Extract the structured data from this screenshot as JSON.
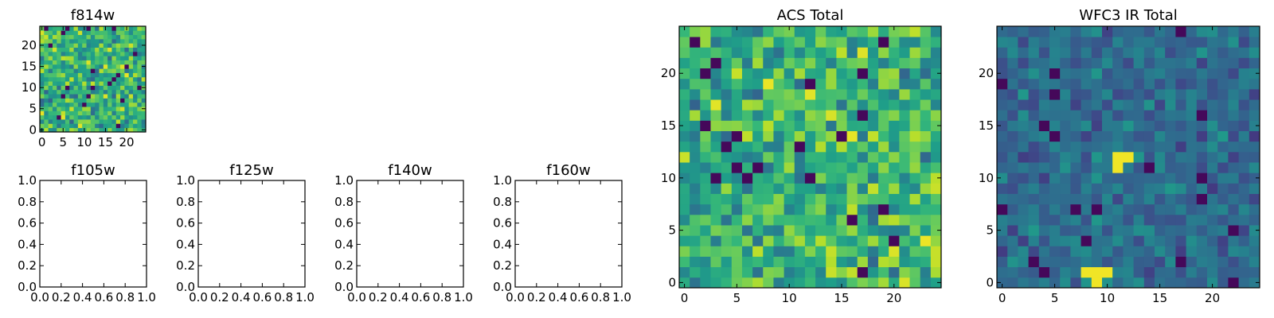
{
  "chart_data": [
    {
      "type": "heatmap",
      "title": "f814w",
      "xlabel": "",
      "ylabel": "",
      "xlim": [
        -0.5,
        24.5
      ],
      "ylim": [
        -0.5,
        24.5
      ],
      "xticks": [
        0,
        5,
        10,
        15,
        20
      ],
      "yticks": [
        0,
        5,
        10,
        15,
        20
      ],
      "grid_size": [
        25,
        25
      ],
      "colormap": "viridis",
      "seed": 814,
      "value_range": [
        0.3,
        1.0
      ]
    },
    {
      "type": "heatmap",
      "title": "f105w",
      "xlabel": "",
      "ylabel": "",
      "xlim": [
        0.0,
        1.0
      ],
      "ylim": [
        0.0,
        1.0
      ],
      "xticks": [
        "0.0",
        "0.2",
        "0.4",
        "0.6",
        "0.8",
        "1.0"
      ],
      "yticks": [
        "0.0",
        "0.2",
        "0.4",
        "0.6",
        "0.8",
        "1.0"
      ],
      "empty": true
    },
    {
      "type": "heatmap",
      "title": "f125w",
      "xlabel": "",
      "ylabel": "",
      "xlim": [
        0.0,
        1.0
      ],
      "ylim": [
        0.0,
        1.0
      ],
      "xticks": [
        "0.0",
        "0.2",
        "0.4",
        "0.6",
        "0.8",
        "1.0"
      ],
      "yticks": [
        "0.0",
        "0.2",
        "0.4",
        "0.6",
        "0.8",
        "1.0"
      ],
      "empty": true
    },
    {
      "type": "heatmap",
      "title": "f140w",
      "xlabel": "",
      "ylabel": "",
      "xlim": [
        0.0,
        1.0
      ],
      "ylim": [
        0.0,
        1.0
      ],
      "xticks": [
        "0.0",
        "0.2",
        "0.4",
        "0.6",
        "0.8",
        "1.0"
      ],
      "yticks": [
        "0.0",
        "0.2",
        "0.4",
        "0.6",
        "0.8",
        "1.0"
      ],
      "empty": true
    },
    {
      "type": "heatmap",
      "title": "f160w",
      "xlabel": "",
      "ylabel": "",
      "xlim": [
        0.0,
        1.0
      ],
      "ylim": [
        0.0,
        1.0
      ],
      "xticks": [
        "0.0",
        "0.2",
        "0.4",
        "0.6",
        "0.8",
        "1.0"
      ],
      "yticks": [
        "0.0",
        "0.2",
        "0.4",
        "0.6",
        "0.8",
        "1.0"
      ],
      "empty": true
    },
    {
      "type": "heatmap",
      "title": "ACS Total",
      "xlabel": "",
      "ylabel": "",
      "xlim": [
        -0.5,
        24.5
      ],
      "ylim": [
        -0.5,
        24.5
      ],
      "xticks": [
        0,
        5,
        10,
        15,
        20
      ],
      "yticks": [
        0,
        5,
        10,
        15,
        20
      ],
      "grid_size": [
        25,
        25
      ],
      "colormap": "viridis",
      "seed": 1200,
      "value_range": [
        0.3,
        1.0
      ]
    },
    {
      "type": "heatmap",
      "title": "WFC3 IR Total",
      "xlabel": "",
      "ylabel": "",
      "xlim": [
        -0.5,
        24.5
      ],
      "ylim": [
        -0.5,
        24.5
      ],
      "xticks": [
        0,
        5,
        10,
        15,
        20
      ],
      "yticks": [
        0,
        5,
        10,
        15,
        20
      ],
      "grid_size": [
        25,
        25
      ],
      "colormap": "viridis",
      "seed": 3100,
      "value_range": [
        0.15,
        0.55
      ],
      "bright_spots": [
        [
          11,
          12
        ],
        [
          12,
          12
        ],
        [
          11,
          11
        ],
        [
          9,
          0
        ],
        [
          9,
          1
        ],
        [
          8,
          1
        ],
        [
          10,
          1
        ]
      ]
    }
  ]
}
